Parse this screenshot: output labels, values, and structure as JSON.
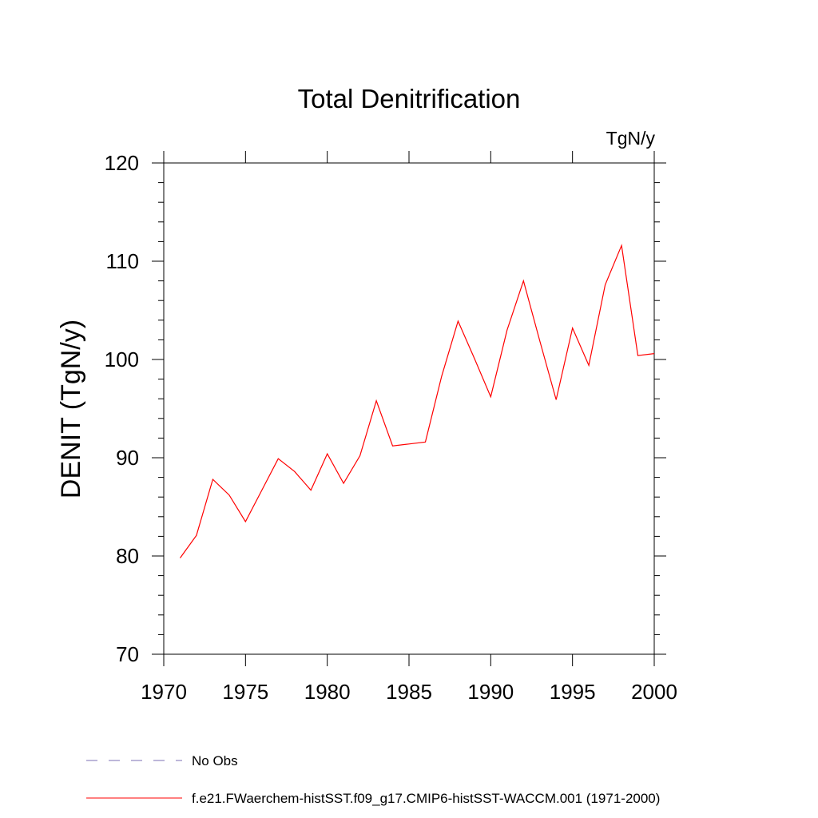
{
  "chart_data": {
    "type": "line",
    "title": "Total Denitrification",
    "units_label": "TgN/y",
    "ylabel": "DENIT  (TgN/y)",
    "xlabel": "",
    "xlim": [
      1970,
      2000
    ],
    "ylim": [
      70,
      120
    ],
    "x_ticks": [
      1970,
      1975,
      1980,
      1985,
      1990,
      1995,
      2000
    ],
    "y_ticks": [
      70,
      80,
      90,
      100,
      110,
      120
    ],
    "x_tick_labels": [
      "1970",
      "1975",
      "1980",
      "1985",
      "1990",
      "1995",
      "2000"
    ],
    "y_tick_labels": [
      "70",
      "80",
      "90",
      "100",
      "110",
      "120"
    ],
    "grid": false,
    "series": [
      {
        "name": "f.e21.FWaerchem-histSST.f09_g17.CMIP6-histSST-WACCM.001 (1971-2000)",
        "color": "#ff0000",
        "style": "solid",
        "x": [
          1971,
          1972,
          1973,
          1974,
          1975,
          1976,
          1977,
          1978,
          1979,
          1980,
          1981,
          1982,
          1983,
          1984,
          1985,
          1986,
          1987,
          1988,
          1989,
          1990,
          1991,
          1992,
          1993,
          1994,
          1995,
          1996,
          1997,
          1998,
          1999,
          2000
        ],
        "values": [
          79.8,
          82.1,
          87.8,
          86.2,
          83.5,
          86.7,
          89.9,
          88.6,
          86.7,
          90.4,
          87.4,
          90.2,
          95.8,
          91.2,
          91.4,
          91.6,
          98.3,
          103.9,
          100.1,
          96.2,
          103.0,
          108.0,
          101.9,
          95.9,
          103.2,
          99.4,
          107.6,
          111.6,
          100.4,
          100.6
        ]
      }
    ],
    "legend": [
      {
        "label": "No Obs",
        "color": "#7b6fb5",
        "style": "dashed"
      },
      {
        "label": "f.e21.FWaerchem-histSST.f09_g17.CMIP6-histSST-WACCM.001 (1971-2000)",
        "color": "#ff0000",
        "style": "solid"
      }
    ],
    "legend_position": "bottom"
  }
}
